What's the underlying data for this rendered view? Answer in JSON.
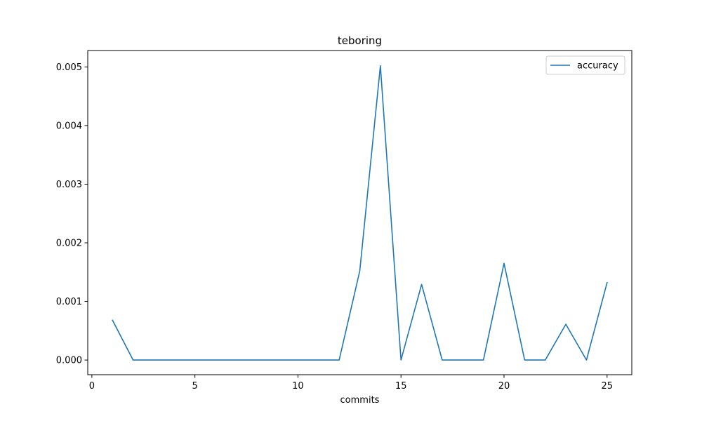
{
  "chart_data": {
    "type": "line",
    "title": "teboring",
    "xlabel": "commits",
    "ylabel": "",
    "xlim": [
      -0.2,
      26.2
    ],
    "ylim": [
      -0.00025,
      0.00528
    ],
    "xticks": [
      0,
      5,
      10,
      15,
      20,
      25
    ],
    "xtick_labels": [
      "0",
      "5",
      "10",
      "15",
      "20",
      "25"
    ],
    "yticks": [
      0.0,
      0.001,
      0.002,
      0.003,
      0.004,
      0.005
    ],
    "ytick_labels": [
      "0.000",
      "0.001",
      "0.002",
      "0.003",
      "0.004",
      "0.005"
    ],
    "grid": false,
    "legend_position": "top-right",
    "x": [
      1,
      2,
      3,
      4,
      5,
      6,
      7,
      8,
      9,
      10,
      11,
      12,
      13,
      14,
      15,
      16,
      17,
      18,
      19,
      20,
      21,
      22,
      23,
      24,
      25
    ],
    "series": [
      {
        "name": "accuracy",
        "color": "#1f77b4",
        "values": [
          0.00068,
          0.0,
          0.0,
          0.0,
          0.0,
          0.0,
          0.0,
          0.0,
          0.0,
          0.0,
          0.0,
          0.0,
          0.00152,
          0.00502,
          0.0,
          0.00129,
          0.0,
          0.0,
          0.0,
          0.00165,
          0.0,
          0.0,
          0.00061,
          0.0,
          0.00132
        ]
      }
    ]
  }
}
